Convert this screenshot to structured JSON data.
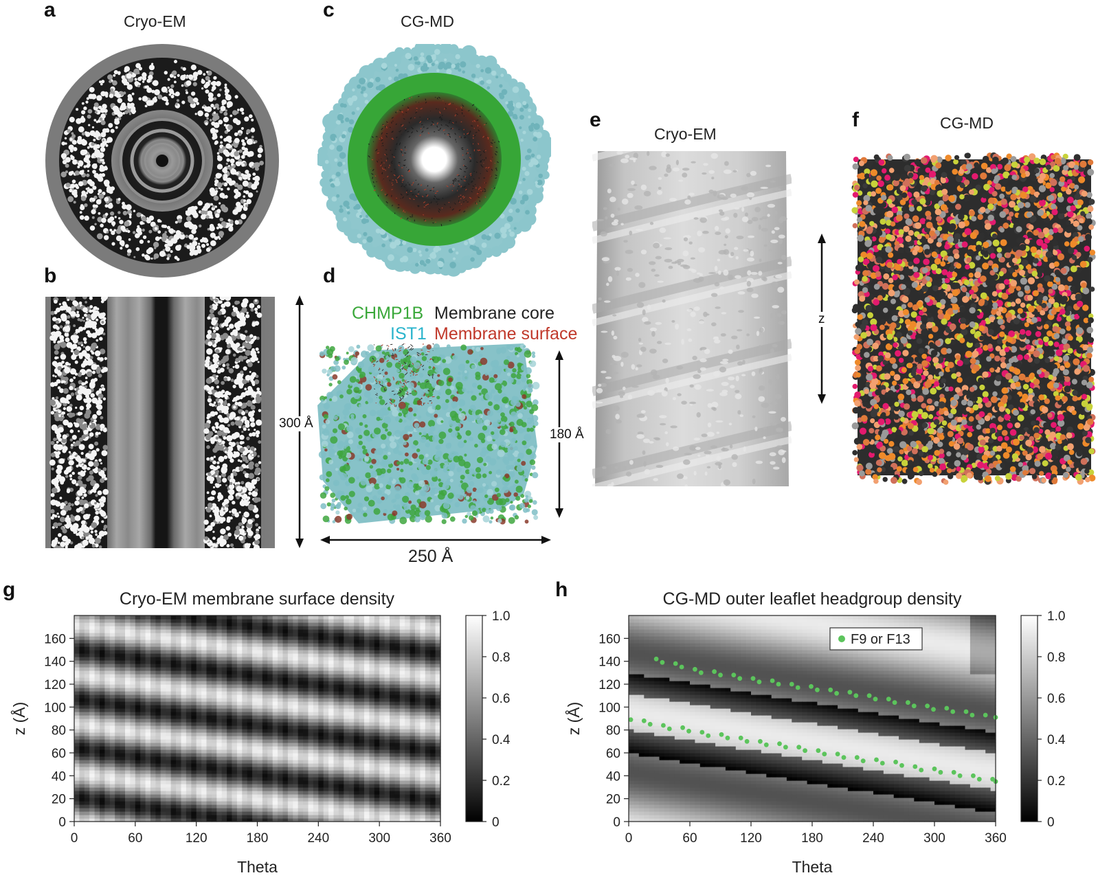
{
  "panels": {
    "a": {
      "label": "a",
      "title": "Cryo-EM"
    },
    "b": {
      "label": "b",
      "scale_label": "300 Å"
    },
    "c": {
      "label": "c",
      "title": "CG-MD"
    },
    "d": {
      "label": "d",
      "legend": {
        "chmp1b": "CHMP1B",
        "membrane_core": "Membrane core",
        "ist1": "IST1",
        "membrane_surface": "Membrane surface"
      },
      "height_label": "180 Å",
      "width_label": "250 Å"
    },
    "e": {
      "label": "e",
      "title": "Cryo-EM",
      "axis_label": "z"
    },
    "f": {
      "label": "f",
      "title": "CG-MD"
    },
    "g": {
      "label": "g",
      "title": "Cryo-EM membrane surface density"
    },
    "h": {
      "label": "h",
      "title": "CG-MD outer leaflet headgroup density",
      "legend": "F9 or F13"
    }
  },
  "colors": {
    "chmp1b": "#3aa83a",
    "ist1": "#2ab4cc",
    "membrane_core": "#222222",
    "membrane_surface": "#c0392b",
    "f_marker": "#5cc45c"
  },
  "chart_data": [
    {
      "type": "heatmap",
      "title": "Cryo-EM membrane surface density",
      "xlabel": "Theta",
      "ylabel": "z (Å)",
      "xlim": [
        0,
        360
      ],
      "ylim": [
        0,
        180
      ],
      "xticks": [
        0,
        60,
        120,
        180,
        240,
        300,
        360
      ],
      "yticks": [
        0,
        20,
        40,
        60,
        80,
        100,
        120,
        140,
        160
      ],
      "colorbar": {
        "min": 0,
        "max": 1.0,
        "ticks": [
          "0",
          "0.2",
          "0.4",
          "0.6",
          "0.8",
          "1.0"
        ]
      },
      "colormap": "gray",
      "pattern": {
        "stripe_slope_z_per_theta": -0.13,
        "period_z": 43
      }
    },
    {
      "type": "heatmap",
      "title": "CG-MD outer leaflet headgroup density",
      "xlabel": "Theta",
      "ylabel": "z (Å)",
      "xlim": [
        0,
        360
      ],
      "ylim": [
        0,
        180
      ],
      "xticks": [
        0,
        60,
        120,
        180,
        240,
        300,
        360
      ],
      "yticks": [
        0,
        20,
        40,
        60,
        80,
        100,
        120,
        140,
        160
      ],
      "colorbar": {
        "min": 0,
        "max": 1.0,
        "ticks": [
          "0",
          "0.2",
          "0.4",
          "0.6",
          "0.8",
          "1.0"
        ]
      },
      "colormap": "gray",
      "legend": "F9 or F13",
      "series": [
        {
          "name": "F9 or F13",
          "points": [
            [
              27,
              142
            ],
            [
              33,
              139
            ],
            [
              46,
              138
            ],
            [
              52,
              135
            ],
            [
              65,
              133
            ],
            [
              71,
              130
            ],
            [
              84,
              131
            ],
            [
              90,
              128
            ],
            [
              103,
              128
            ],
            [
              109,
              125
            ],
            [
              122,
              125
            ],
            [
              128,
              122
            ],
            [
              141,
              123
            ],
            [
              147,
              120
            ],
            [
              160,
              120
            ],
            [
              166,
              117
            ],
            [
              179,
              118
            ],
            [
              185,
              115
            ],
            [
              198,
              115
            ],
            [
              204,
              112
            ],
            [
              217,
              113
            ],
            [
              223,
              110
            ],
            [
              236,
              110
            ],
            [
              242,
              107
            ],
            [
              255,
              107
            ],
            [
              261,
              104
            ],
            [
              274,
              104
            ],
            [
              280,
              101
            ],
            [
              293,
              101
            ],
            [
              299,
              98
            ],
            [
              312,
              99
            ],
            [
              318,
              96
            ],
            [
              331,
              96
            ],
            [
              337,
              93
            ],
            [
              350,
              93
            ],
            [
              360,
              91
            ],
            [
              2,
              89
            ],
            [
              15,
              88
            ],
            [
              21,
              85
            ],
            [
              34,
              84
            ],
            [
              40,
              81
            ],
            [
              53,
              82
            ],
            [
              59,
              79
            ],
            [
              72,
              78
            ],
            [
              78,
              75
            ],
            [
              91,
              76
            ],
            [
              97,
              73
            ],
            [
              110,
              73
            ],
            [
              116,
              70
            ],
            [
              129,
              70
            ],
            [
              135,
              67
            ],
            [
              148,
              68
            ],
            [
              154,
              65
            ],
            [
              167,
              65
            ],
            [
              173,
              62
            ],
            [
              186,
              62
            ],
            [
              192,
              59
            ],
            [
              205,
              59
            ],
            [
              211,
              56
            ],
            [
              224,
              56
            ],
            [
              230,
              53
            ],
            [
              243,
              54
            ],
            [
              249,
              51
            ],
            [
              262,
              52
            ],
            [
              268,
              49
            ],
            [
              281,
              48
            ],
            [
              287,
              45
            ],
            [
              300,
              46
            ],
            [
              306,
              43
            ],
            [
              319,
              43
            ],
            [
              325,
              40
            ],
            [
              338,
              40
            ],
            [
              344,
              37
            ],
            [
              357,
              37
            ],
            [
              360,
              35
            ]
          ]
        }
      ]
    }
  ]
}
